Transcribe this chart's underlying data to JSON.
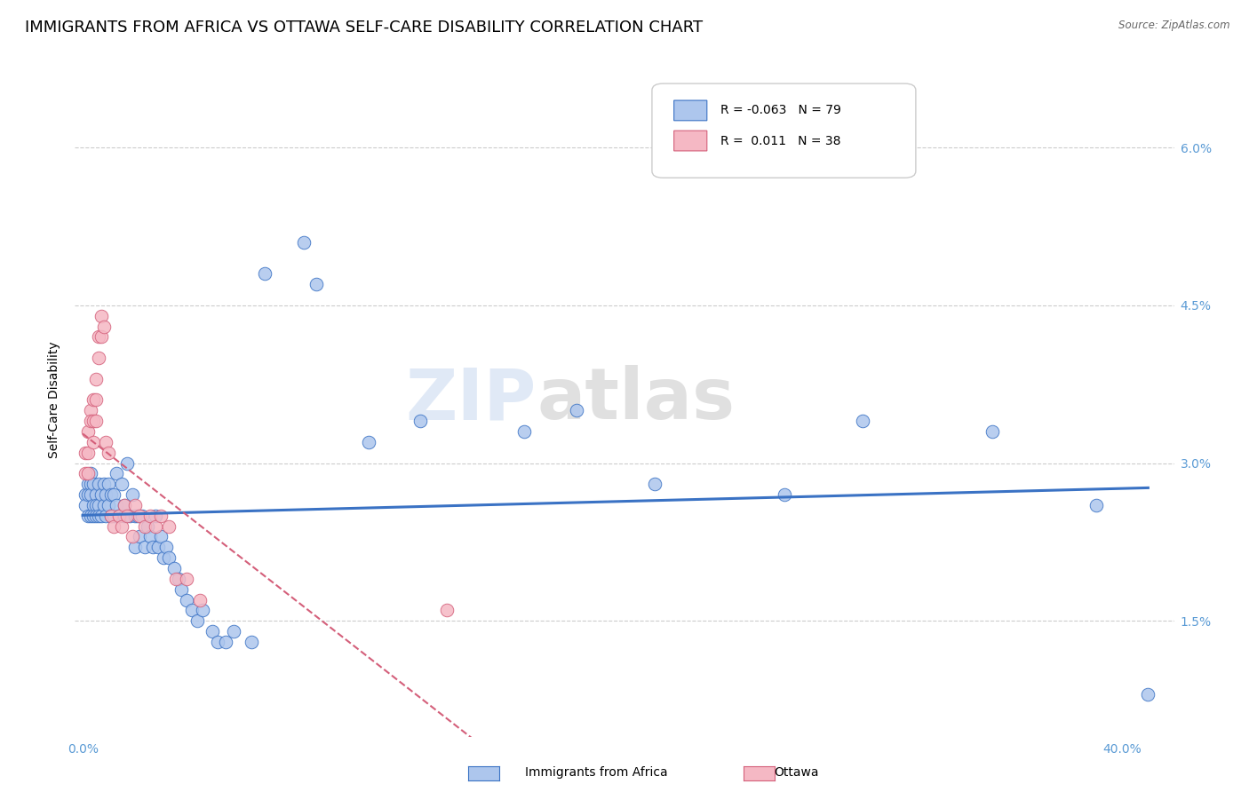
{
  "title": "IMMIGRANTS FROM AFRICA VS OTTAWA SELF-CARE DISABILITY CORRELATION CHART",
  "source": "Source: ZipAtlas.com",
  "ylabel": "Self-Care Disability",
  "yticks": [
    "6.0%",
    "4.5%",
    "3.0%",
    "1.5%"
  ],
  "ytick_vals": [
    0.06,
    0.045,
    0.03,
    0.015
  ],
  "ylim": [
    0.004,
    0.068
  ],
  "xlim": [
    -0.003,
    0.42
  ],
  "legend_label_blue": "Immigrants from Africa",
  "legend_label_pink": "Ottawa",
  "legend_r_blue": "-0.063",
  "legend_n_blue": "79",
  "legend_r_pink": " 0.011",
  "legend_n_pink": "38",
  "watermark": "ZIPatlas",
  "blue_x": [
    0.001,
    0.001,
    0.002,
    0.002,
    0.002,
    0.003,
    0.003,
    0.003,
    0.003,
    0.004,
    0.004,
    0.004,
    0.005,
    0.005,
    0.005,
    0.006,
    0.006,
    0.006,
    0.007,
    0.007,
    0.008,
    0.008,
    0.009,
    0.009,
    0.01,
    0.01,
    0.011,
    0.011,
    0.012,
    0.012,
    0.013,
    0.013,
    0.014,
    0.015,
    0.016,
    0.016,
    0.017,
    0.018,
    0.019,
    0.02,
    0.02,
    0.021,
    0.022,
    0.023,
    0.024,
    0.025,
    0.026,
    0.027,
    0.028,
    0.029,
    0.03,
    0.031,
    0.032,
    0.033,
    0.035,
    0.037,
    0.038,
    0.04,
    0.042,
    0.044,
    0.046,
    0.05,
    0.052,
    0.055,
    0.058,
    0.065,
    0.07,
    0.085,
    0.09,
    0.11,
    0.13,
    0.17,
    0.19,
    0.22,
    0.27,
    0.3,
    0.35,
    0.39,
    0.41
  ],
  "blue_y": [
    0.027,
    0.026,
    0.028,
    0.027,
    0.025,
    0.029,
    0.028,
    0.027,
    0.025,
    0.028,
    0.026,
    0.025,
    0.027,
    0.026,
    0.025,
    0.028,
    0.026,
    0.025,
    0.027,
    0.025,
    0.028,
    0.026,
    0.027,
    0.025,
    0.028,
    0.026,
    0.027,
    0.025,
    0.027,
    0.025,
    0.029,
    0.026,
    0.025,
    0.028,
    0.026,
    0.025,
    0.03,
    0.025,
    0.027,
    0.025,
    0.022,
    0.025,
    0.023,
    0.025,
    0.022,
    0.024,
    0.023,
    0.022,
    0.025,
    0.022,
    0.023,
    0.021,
    0.022,
    0.021,
    0.02,
    0.019,
    0.018,
    0.017,
    0.016,
    0.015,
    0.016,
    0.014,
    0.013,
    0.013,
    0.014,
    0.013,
    0.048,
    0.051,
    0.047,
    0.032,
    0.034,
    0.033,
    0.035,
    0.028,
    0.027,
    0.034,
    0.033,
    0.026,
    0.008
  ],
  "pink_x": [
    0.001,
    0.001,
    0.002,
    0.002,
    0.002,
    0.003,
    0.003,
    0.004,
    0.004,
    0.004,
    0.005,
    0.005,
    0.005,
    0.006,
    0.006,
    0.007,
    0.007,
    0.008,
    0.009,
    0.01,
    0.011,
    0.012,
    0.014,
    0.015,
    0.016,
    0.017,
    0.019,
    0.02,
    0.022,
    0.024,
    0.026,
    0.028,
    0.03,
    0.033,
    0.036,
    0.04,
    0.045,
    0.14
  ],
  "pink_y": [
    0.031,
    0.029,
    0.033,
    0.031,
    0.029,
    0.035,
    0.034,
    0.036,
    0.034,
    0.032,
    0.038,
    0.036,
    0.034,
    0.042,
    0.04,
    0.044,
    0.042,
    0.043,
    0.032,
    0.031,
    0.025,
    0.024,
    0.025,
    0.024,
    0.026,
    0.025,
    0.023,
    0.026,
    0.025,
    0.024,
    0.025,
    0.024,
    0.025,
    0.024,
    0.019,
    0.019,
    0.017,
    0.016
  ],
  "blue_color": "#adc6ed",
  "pink_color": "#f5b8c4",
  "blue_line_color": "#3a72c4",
  "pink_line_color": "#d45f7a",
  "grid_color": "#cccccc",
  "axis_color": "#5b9bd5",
  "background_color": "#ffffff",
  "title_fontsize": 13,
  "axis_label_fontsize": 10,
  "tick_fontsize": 10
}
